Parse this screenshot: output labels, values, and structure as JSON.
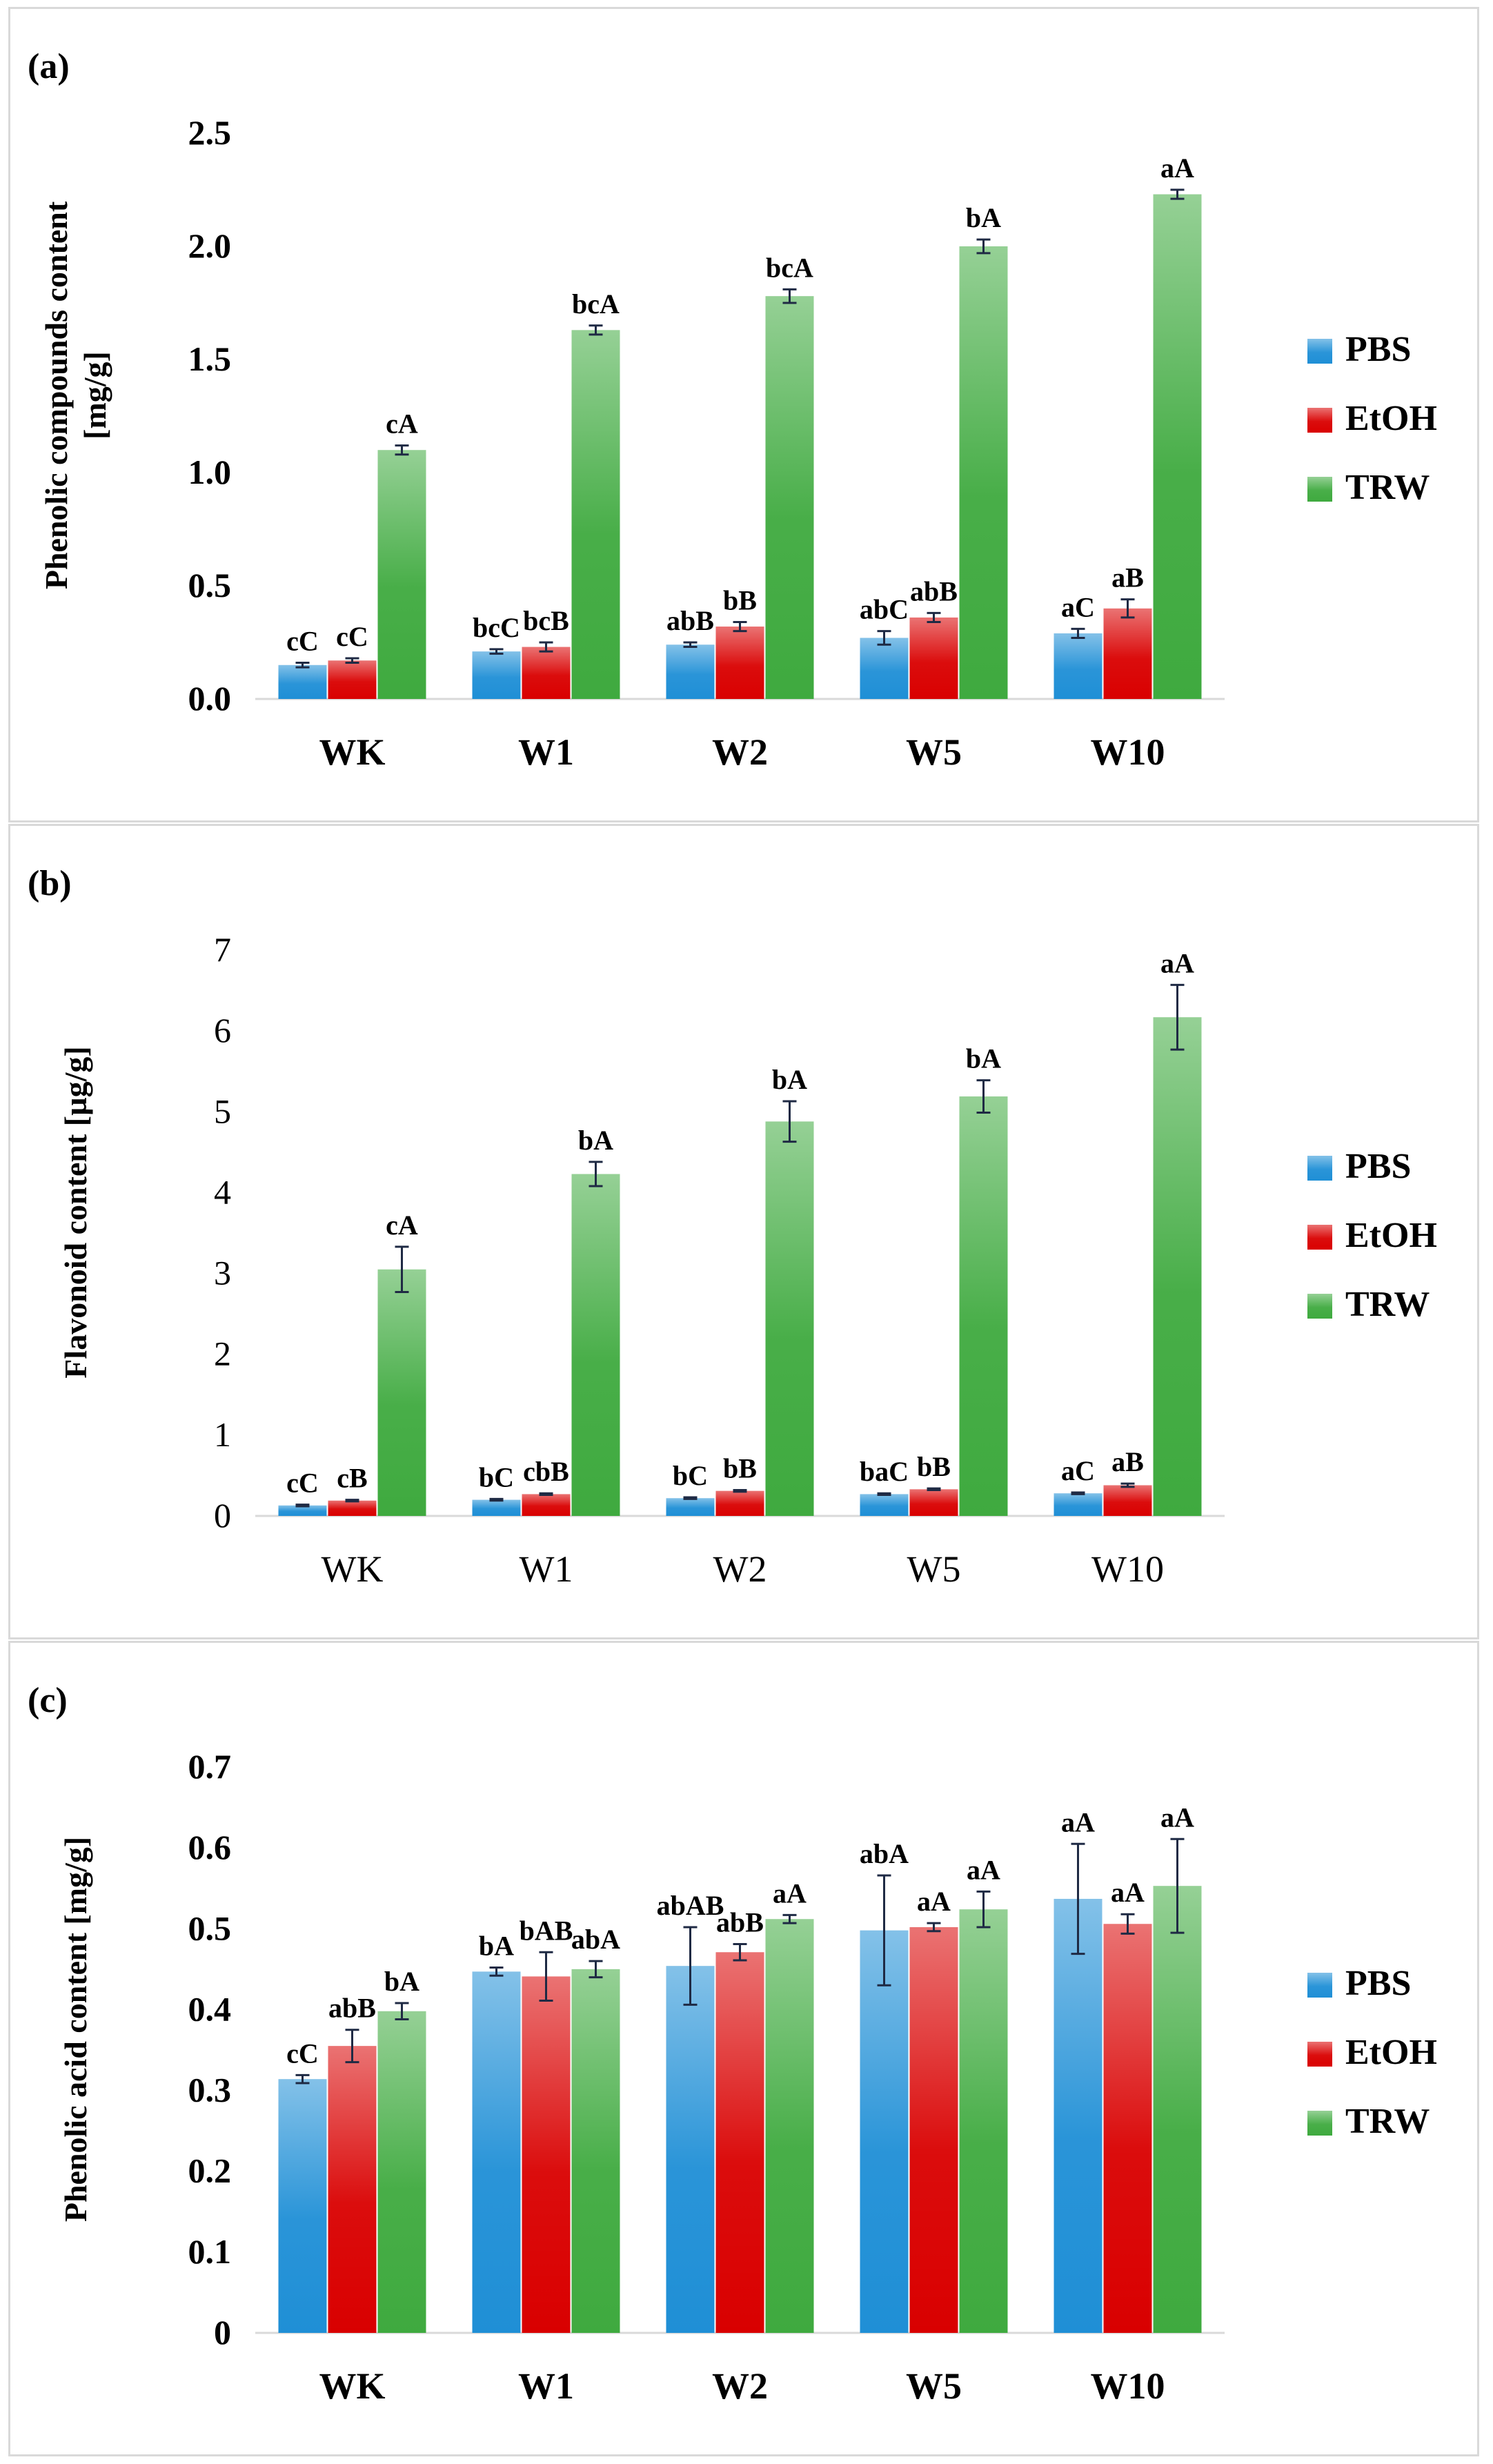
{
  "colors": {
    "PBS": "#1f8fd6",
    "EtOH": "#d90000",
    "TRW": "#3faa3f",
    "grid": "#d9d9d9",
    "error": "#1f2a44",
    "text": "#000000"
  },
  "chart_data": [
    {
      "type": "bar",
      "panel_label": "(a)",
      "title": "",
      "xlabel": "",
      "ylabel": "Phenolic compounds content [mg/g]",
      "ylabel_lines": [
        "Phenolic compounds content",
        "[mg/g]"
      ],
      "ylim": [
        0,
        2.5
      ],
      "yticks": [
        "0.0",
        "0.5",
        "1.0",
        "1.5",
        "2.0",
        "2.5"
      ],
      "tick_bold": true,
      "grid": false,
      "legend_position": "right",
      "categories": [
        "WK",
        "W1",
        "W2",
        "W5",
        "W10"
      ],
      "series": [
        {
          "name": "PBS",
          "values": [
            0.15,
            0.21,
            0.24,
            0.27,
            0.29
          ],
          "errors": [
            0.01,
            0.01,
            0.01,
            0.03,
            0.02
          ],
          "labels": [
            "cC",
            "bcC",
            "abB",
            "abC",
            "aC"
          ]
        },
        {
          "name": "EtOH",
          "values": [
            0.17,
            0.23,
            0.32,
            0.36,
            0.4
          ],
          "errors": [
            0.01,
            0.02,
            0.02,
            0.02,
            0.04
          ],
          "labels": [
            "cC",
            "bcB",
            "bB",
            "abB",
            "aB"
          ]
        },
        {
          "name": "TRW",
          "values": [
            1.1,
            1.63,
            1.78,
            2.0,
            2.23
          ],
          "errors": [
            0.02,
            0.02,
            0.03,
            0.03,
            0.02
          ],
          "labels": [
            "cA",
            "bcA",
            "bcA",
            "bA",
            "aA"
          ]
        }
      ]
    },
    {
      "type": "bar",
      "panel_label": "(b)",
      "title": "",
      "xlabel": "",
      "ylabel": "Flavonoid content [µg/g]",
      "ylabel_lines": [
        "Flavonoid content [µg/g]"
      ],
      "ylim": [
        0,
        7
      ],
      "yticks": [
        "0",
        "1",
        "2",
        "3",
        "4",
        "5",
        "6",
        "7"
      ],
      "tick_bold": false,
      "grid": false,
      "legend_position": "right",
      "categories": [
        "WK",
        "W1",
        "W2",
        "W5",
        "W10"
      ],
      "series": [
        {
          "name": "PBS",
          "values": [
            0.13,
            0.2,
            0.22,
            0.27,
            0.28
          ],
          "errors": [
            0.01,
            0.01,
            0.01,
            0.01,
            0.01
          ],
          "labels": [
            "cC",
            "bC",
            "bC",
            "baC",
            "aC"
          ]
        },
        {
          "name": "EtOH",
          "values": [
            0.19,
            0.27,
            0.31,
            0.33,
            0.38
          ],
          "errors": [
            0.01,
            0.01,
            0.01,
            0.01,
            0.02
          ],
          "labels": [
            "cB",
            "cbB",
            "bB",
            "bB",
            "aB"
          ]
        },
        {
          "name": "TRW",
          "values": [
            3.05,
            4.23,
            4.88,
            5.19,
            6.17
          ],
          "errors": [
            0.28,
            0.15,
            0.25,
            0.2,
            0.4
          ],
          "labels": [
            "cA",
            "bA",
            "bA",
            "bA",
            "aA"
          ]
        }
      ]
    },
    {
      "type": "bar",
      "panel_label": "(c)",
      "title": "",
      "xlabel": "",
      "ylabel": "Phenolic acid content [mg/g]",
      "ylabel_lines": [
        "Phenolic acid content [mg/g]"
      ],
      "ylim": [
        0,
        0.7
      ],
      "yticks": [
        "0",
        "0.1",
        "0.2",
        "0.3",
        "0.4",
        "0.5",
        "0.6",
        "0.7"
      ],
      "tick_bold": true,
      "grid": false,
      "legend_position": "right",
      "categories": [
        "WK",
        "W1",
        "W2",
        "W5",
        "W10"
      ],
      "series": [
        {
          "name": "PBS",
          "values": [
            0.314,
            0.447,
            0.454,
            0.498,
            0.537
          ],
          "errors": [
            0.005,
            0.005,
            0.048,
            0.068,
            0.068
          ],
          "labels": [
            "cC",
            "bA",
            "abAB",
            "abA",
            "aA"
          ]
        },
        {
          "name": "EtOH",
          "values": [
            0.355,
            0.441,
            0.471,
            0.502,
            0.506
          ],
          "errors": [
            0.02,
            0.03,
            0.01,
            0.005,
            0.012
          ],
          "labels": [
            "abB",
            "bAB",
            "abB",
            "aA",
            "aA"
          ]
        },
        {
          "name": "TRW",
          "values": [
            0.398,
            0.45,
            0.512,
            0.524,
            0.553
          ],
          "errors": [
            0.01,
            0.01,
            0.005,
            0.022,
            0.058
          ],
          "labels": [
            "bA",
            "abA",
            "aA",
            "aA",
            "aA"
          ]
        }
      ]
    }
  ]
}
